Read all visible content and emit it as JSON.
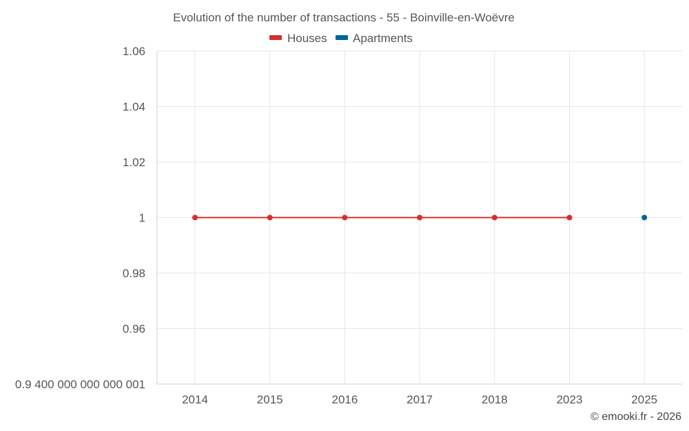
{
  "chart_data": {
    "type": "line",
    "title": "Evolution of the number of transactions - 55 - Boinville-en-Woëvre",
    "categories": [
      "2014",
      "2015",
      "2016",
      "2017",
      "2018",
      "2023",
      "2025"
    ],
    "y_tick_labels": [
      "0.9 400 000 000 000 001",
      "0.96",
      "0.98",
      "1",
      "1.02",
      "1.04",
      "1.06"
    ],
    "y_ticks": [
      0.94,
      0.96,
      0.98,
      1.0,
      1.02,
      1.04,
      1.06
    ],
    "ylim": [
      0.94,
      1.06
    ],
    "grid": true,
    "legend_position": "top-center",
    "series": [
      {
        "name": "Houses",
        "color": "#d32f2f",
        "values": [
          1,
          1,
          1,
          1,
          1,
          1,
          null
        ]
      },
      {
        "name": "Apartments",
        "color": "#01659a",
        "values": [
          null,
          null,
          null,
          null,
          null,
          null,
          1
        ]
      }
    ],
    "credit": "© emooki.fr - 2026"
  }
}
